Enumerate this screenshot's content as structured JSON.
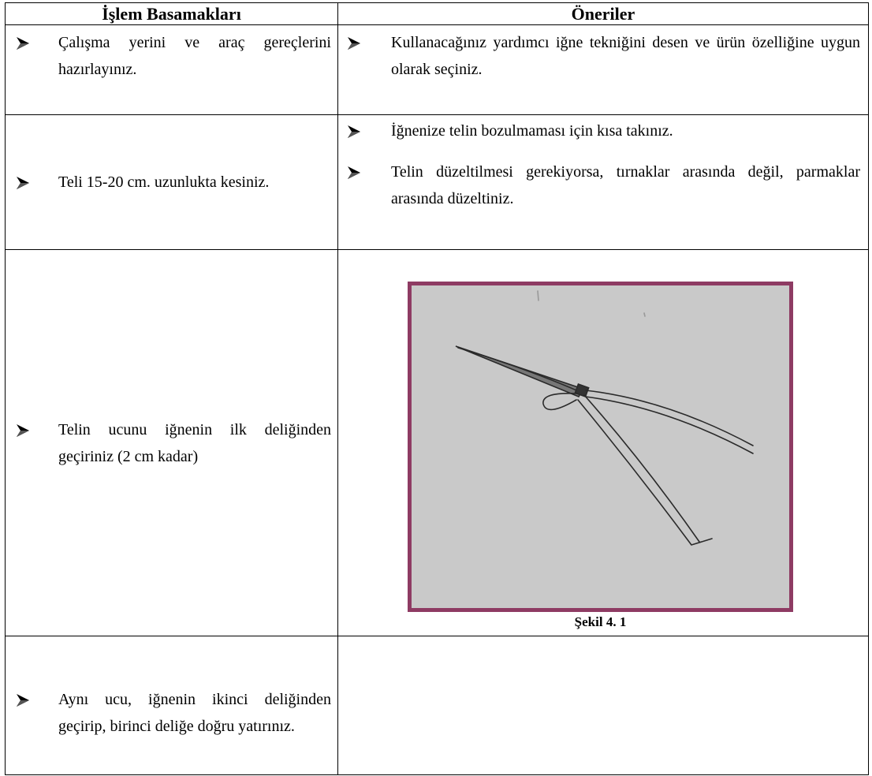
{
  "table": {
    "header": [
      "İşlem Basamakları",
      "Öneriler"
    ],
    "rows": [
      {
        "step": "Çalışma yerini ve araç gereçlerini hazırlayınız.",
        "suggestions": [
          "Kullanacağınız yardımcı iğne tekniğini desen ve ürün özelliğine uygun olarak seçiniz."
        ]
      },
      {
        "step": "Teli 15-20 cm. uzunlukta kesiniz.",
        "suggestions": [
          "İğnenize telin bozulmaması için kısa takınız.",
          "Telin düzeltilmesi gerekiyorsa, tırnaklar arasında değil, parmaklar arasında düzeltiniz."
        ]
      },
      {
        "step": "Telin ucunu iğnenin ilk deliğinden geçiriniz (2 cm kadar)",
        "figure_caption": "Şekil 4. 1"
      },
      {
        "step": "Aynı ucu, iğnenin ikinci deliğinden geçirip, birinci deliğe doğru yatırınız."
      }
    ]
  }
}
